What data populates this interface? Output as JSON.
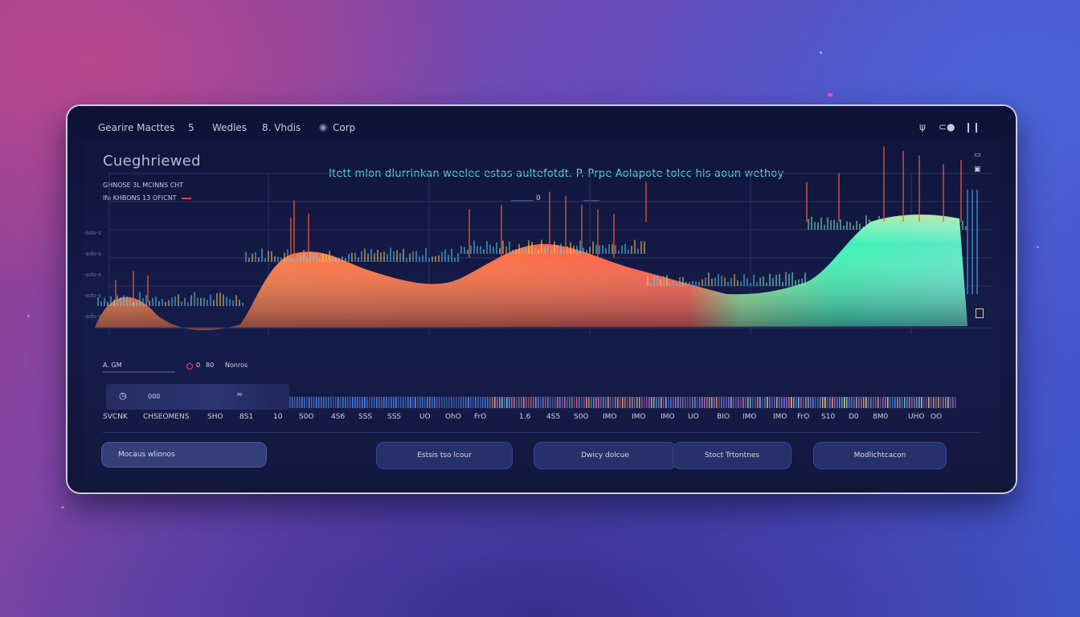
{
  "topbar": {
    "brand": "Gearire Macttes",
    "menu": [
      "5",
      "Wedles",
      "8. Vhdis",
      "Corp"
    ],
    "right_icons": [
      "wifi-icon",
      "toggle-icon",
      "signal-icon"
    ]
  },
  "panel": {
    "title": "Cueghriewed",
    "subtitle1": "GHNOSE 3L MCINNS CHT",
    "subtitle2": "Ifo KHBONS 13 OFICNT",
    "headline": "Itett mlon dlurrinkan weelec estas aultefotdt. P. Prpe Aolapote tolcc his aoun wethoy",
    "mini_marker": "0",
    "left_axis": [
      "-ado-s",
      "-ado-s",
      "-ado-s",
      "-ado-s",
      "-ado-s"
    ]
  },
  "legend": {
    "left": "A. GM",
    "middle_values": [
      "0",
      "80"
    ],
    "right": "Nonros"
  },
  "transport": {
    "time": "000",
    "marker": "≈"
  },
  "scale_labels": [
    "SVCNK",
    "CHSEOMENS",
    "SHO",
    "8S1",
    "10",
    "S0O",
    "4S6",
    "SSS",
    "SSS",
    "UO",
    "OhO",
    "FrO",
    "1.6",
    "4S5",
    "S0O",
    "IMO",
    "IMO",
    "IMO",
    "UO",
    "BIO",
    "IMO",
    "IMO",
    "FrO",
    "S10",
    "D0",
    "8M0",
    "UHO",
    "OO"
  ],
  "buttons": [
    "Mocaus wlionos",
    "Estsis tso lcour",
    "Dwicy dolcue",
    "Stoct Trtontnes",
    "Modlichtcacon"
  ],
  "colors": {
    "accent_cyan": "#5fd7e6",
    "warm": "#ff5a3c",
    "mint": "#5ef5b4"
  }
}
